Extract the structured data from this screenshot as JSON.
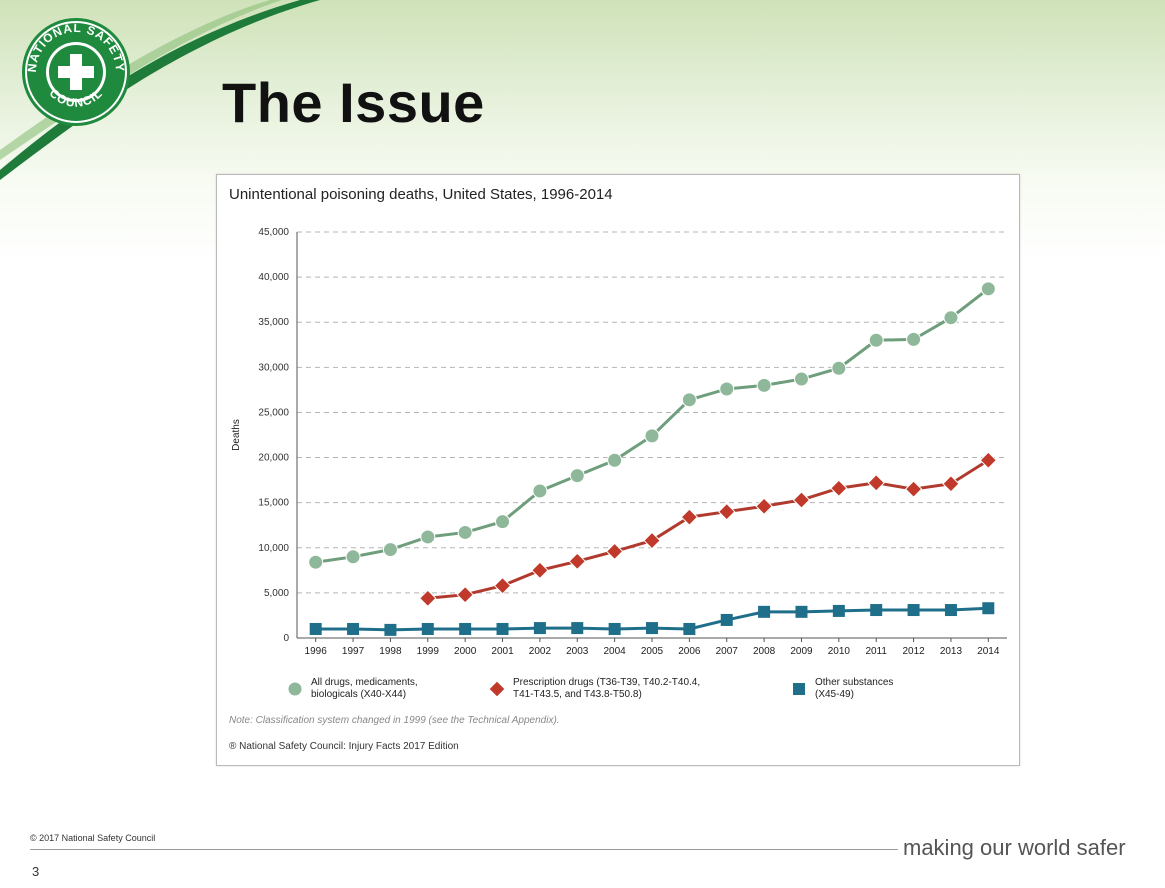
{
  "slide": {
    "title": "The Issue",
    "footer_copyright": "© 2017 National Safety Council",
    "tagline": "making our world safer",
    "page_number": "3",
    "logo": {
      "text_top": "NATIONAL SAFETY",
      "text_bottom": "COUNCIL",
      "color": "#1f8a3e"
    }
  },
  "chart_data": {
    "type": "line",
    "title": "Unintentional poisoning deaths, United States, 1996-2014",
    "ylabel": "Deaths",
    "xlabel": "",
    "ylim": [
      0,
      45000
    ],
    "yticks": [
      "0",
      "5,000",
      "10,000",
      "15,000",
      "20,000",
      "25,000",
      "30,000",
      "35,000",
      "40,000",
      "45,000"
    ],
    "yticks_values": [
      0,
      5000,
      10000,
      15000,
      20000,
      25000,
      30000,
      35000,
      40000,
      45000
    ],
    "categories": [
      "1996",
      "1997",
      "1998",
      "1999",
      "2000",
      "2001",
      "2002",
      "2003",
      "2004",
      "2005",
      "2006",
      "2007",
      "2008",
      "2009",
      "2010",
      "2011",
      "2012",
      "2013",
      "2014"
    ],
    "grid": "horizontal dashed",
    "series": [
      {
        "name": "All drugs, medicaments, biologicals (X40-X44)",
        "name_lines": [
          "All drugs, medicaments,",
          "biologicals (X40-X44)"
        ],
        "color": "#8fb89a",
        "line_color": "#6e9e7c",
        "marker": "circle",
        "values": [
          8400,
          9000,
          9800,
          11200,
          11700,
          12900,
          16300,
          18000,
          19700,
          22400,
          26400,
          27600,
          28000,
          28700,
          29900,
          33000,
          33100,
          35500,
          38700
        ]
      },
      {
        "name": "Prescription drugs (T36-T39, T40.2-T40.4, T41-T43.5, and T43.8-T50.8)",
        "name_lines": [
          "Prescription drugs (T36-T39, T40.2-T40.4,",
          "T41-T43.5, and T43.8-T50.8)"
        ],
        "color": "#c0392b",
        "line_color": "#b03a2e",
        "marker": "diamond",
        "values": [
          null,
          null,
          null,
          4400,
          4800,
          5800,
          7500,
          8500,
          9600,
          10800,
          13400,
          14000,
          14600,
          15300,
          16600,
          17200,
          16500,
          17100,
          19700
        ]
      },
      {
        "name": "Other substances (X45-49)",
        "name_lines": [
          "Other substances",
          "(X45-49)"
        ],
        "color": "#1f6f8b",
        "line_color": "#1f6f8b",
        "marker": "square",
        "values": [
          1000,
          1000,
          900,
          1000,
          1000,
          1000,
          1100,
          1100,
          1000,
          1100,
          1000,
          2000,
          2900,
          2900,
          3000,
          3100,
          3100,
          3100,
          3300
        ]
      }
    ],
    "note": "Note: Classification system changed in 1999 (see the Technical Appendix).",
    "source": "® National Safety Council: Injury Facts 2017 Edition"
  }
}
